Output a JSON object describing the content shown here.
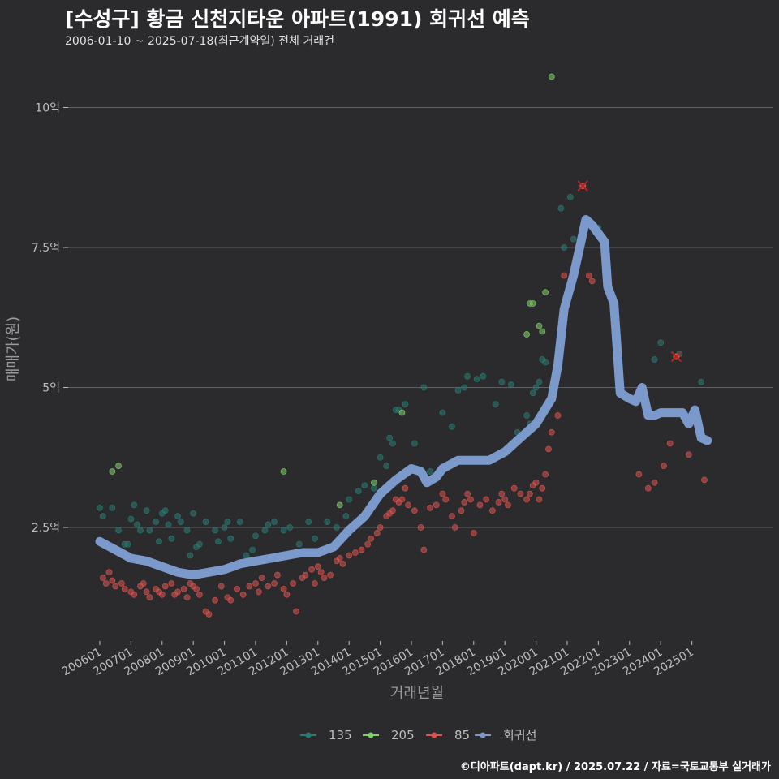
{
  "header": {
    "title": "[수성구] 황금 신천지타운 아파트(1991) 회귀선 예측",
    "subtitle": "2006-01-10 ~ 2025-07-18(최근계약일) 전체 거래건"
  },
  "footer": {
    "credit": "©디아파트(dapt.kr) / 2025.07.22 / 자료=국토교통부 실거래가"
  },
  "colors": {
    "135": "#2a7a72",
    "205": "#7fcf6a",
    "85": "#d9534f",
    "regression": "#7b9acb",
    "background": "#2b2b2d",
    "grid": "#606060"
  },
  "chart_data": {
    "type": "scatter",
    "title": "[수성구] 황금 신천지타운 아파트(1991) 회귀선 예측",
    "xlabel": "거래년월",
    "ylabel": "매매가(원)",
    "x_ticks": [
      "200601",
      "200701",
      "200801",
      "200901",
      "201001",
      "201101",
      "201201",
      "201301",
      "201401",
      "201501",
      "201601",
      "201701",
      "201801",
      "201901",
      "202001",
      "202101",
      "202201",
      "202301",
      "202401",
      "202501"
    ],
    "y_ticks": [
      {
        "value": 2.5,
        "label": "2.5억"
      },
      {
        "value": 5,
        "label": "5억"
      },
      {
        "value": 7.5,
        "label": "7.5억"
      },
      {
        "value": 10,
        "label": "10억"
      }
    ],
    "xlim": [
      2005.9,
      2025.7
    ],
    "ylim": [
      1.1,
      10.9
    ],
    "legend_position": "bottom",
    "legend": [
      "135",
      "205",
      "85",
      "회귀선"
    ],
    "series": [
      {
        "name": "135",
        "points": [
          [
            2006.0,
            2.85
          ],
          [
            2006.1,
            2.7
          ],
          [
            2006.4,
            2.85
          ],
          [
            2006.6,
            2.45
          ],
          [
            2006.8,
            2.2
          ],
          [
            2006.9,
            2.2
          ],
          [
            2007.0,
            2.65
          ],
          [
            2007.1,
            2.9
          ],
          [
            2007.2,
            2.55
          ],
          [
            2007.3,
            2.45
          ],
          [
            2007.5,
            2.8
          ],
          [
            2007.6,
            2.45
          ],
          [
            2007.8,
            2.6
          ],
          [
            2007.9,
            2.25
          ],
          [
            2008.0,
            2.75
          ],
          [
            2008.1,
            2.8
          ],
          [
            2008.2,
            2.55
          ],
          [
            2008.3,
            2.3
          ],
          [
            2008.5,
            2.7
          ],
          [
            2008.6,
            2.6
          ],
          [
            2008.8,
            2.45
          ],
          [
            2008.9,
            2.0
          ],
          [
            2009.0,
            2.75
          ],
          [
            2009.1,
            2.15
          ],
          [
            2009.2,
            2.2
          ],
          [
            2009.4,
            2.6
          ],
          [
            2009.7,
            2.45
          ],
          [
            2009.8,
            2.25
          ],
          [
            2010.0,
            2.5
          ],
          [
            2010.1,
            2.6
          ],
          [
            2010.2,
            2.3
          ],
          [
            2010.5,
            2.6
          ],
          [
            2010.7,
            2.0
          ],
          [
            2010.9,
            2.1
          ],
          [
            2011.0,
            2.35
          ],
          [
            2011.3,
            2.45
          ],
          [
            2011.4,
            2.55
          ],
          [
            2011.6,
            2.6
          ],
          [
            2011.9,
            2.45
          ],
          [
            2012.1,
            2.5
          ],
          [
            2012.4,
            2.2
          ],
          [
            2012.7,
            2.6
          ],
          [
            2012.9,
            2.3
          ],
          [
            2013.3,
            2.6
          ],
          [
            2013.6,
            2.5
          ],
          [
            2013.9,
            2.7
          ],
          [
            2014.0,
            3.0
          ],
          [
            2014.3,
            3.15
          ],
          [
            2014.5,
            3.25
          ],
          [
            2014.8,
            3.2
          ],
          [
            2015.0,
            3.75
          ],
          [
            2015.2,
            3.6
          ],
          [
            2015.3,
            4.1
          ],
          [
            2015.4,
            4.0
          ],
          [
            2015.5,
            4.6
          ],
          [
            2015.6,
            4.6
          ],
          [
            2015.8,
            4.7
          ],
          [
            2016.1,
            4.0
          ],
          [
            2016.4,
            5.0
          ],
          [
            2016.6,
            3.5
          ],
          [
            2017.0,
            4.55
          ],
          [
            2017.3,
            4.3
          ],
          [
            2017.5,
            4.95
          ],
          [
            2017.7,
            5.0
          ],
          [
            2017.8,
            5.2
          ],
          [
            2018.1,
            5.15
          ],
          [
            2018.3,
            5.2
          ],
          [
            2018.7,
            4.7
          ],
          [
            2018.9,
            5.1
          ],
          [
            2019.2,
            5.05
          ],
          [
            2019.4,
            4.2
          ],
          [
            2019.7,
            4.5
          ],
          [
            2019.8,
            4.35
          ],
          [
            2019.9,
            4.9
          ],
          [
            2020.0,
            5.0
          ],
          [
            2020.1,
            5.1
          ],
          [
            2020.2,
            5.5
          ],
          [
            2020.3,
            5.45
          ],
          [
            2020.6,
            4.95
          ],
          [
            2020.8,
            8.2
          ],
          [
            2020.9,
            7.5
          ],
          [
            2021.1,
            8.4
          ],
          [
            2021.2,
            7.65
          ],
          [
            2022.0,
            7.85
          ],
          [
            2023.8,
            5.5
          ],
          [
            2024.0,
            5.8
          ],
          [
            2024.6,
            5.6
          ],
          [
            2025.3,
            5.1
          ]
        ]
      },
      {
        "name": "205",
        "points": [
          [
            2006.4,
            3.5
          ],
          [
            2006.6,
            3.6
          ],
          [
            2011.9,
            3.5
          ],
          [
            2013.7,
            2.9
          ],
          [
            2014.8,
            3.3
          ],
          [
            2015.7,
            4.55
          ],
          [
            2019.7,
            5.95
          ],
          [
            2019.8,
            6.5
          ],
          [
            2019.9,
            6.5
          ],
          [
            2020.1,
            6.1
          ],
          [
            2020.2,
            6.0
          ],
          [
            2020.3,
            6.7
          ],
          [
            2020.5,
            10.55
          ]
        ]
      },
      {
        "name": "85",
        "points": [
          [
            2006.1,
            1.6
          ],
          [
            2006.2,
            1.5
          ],
          [
            2006.3,
            1.7
          ],
          [
            2006.4,
            1.55
          ],
          [
            2006.5,
            1.45
          ],
          [
            2006.7,
            1.5
          ],
          [
            2006.8,
            1.4
          ],
          [
            2007.0,
            1.35
          ],
          [
            2007.1,
            1.3
          ],
          [
            2007.3,
            1.45
          ],
          [
            2007.4,
            1.5
          ],
          [
            2007.5,
            1.35
          ],
          [
            2007.6,
            1.25
          ],
          [
            2007.8,
            1.4
          ],
          [
            2007.9,
            1.35
          ],
          [
            2008.0,
            1.3
          ],
          [
            2008.1,
            1.45
          ],
          [
            2008.3,
            1.5
          ],
          [
            2008.4,
            1.3
          ],
          [
            2008.5,
            1.35
          ],
          [
            2008.7,
            1.4
          ],
          [
            2008.8,
            1.25
          ],
          [
            2008.9,
            1.5
          ],
          [
            2009.0,
            1.45
          ],
          [
            2009.1,
            1.4
          ],
          [
            2009.2,
            1.3
          ],
          [
            2009.4,
            1.0
          ],
          [
            2009.5,
            0.95
          ],
          [
            2009.7,
            1.2
          ],
          [
            2009.9,
            1.45
          ],
          [
            2010.1,
            1.25
          ],
          [
            2010.2,
            1.2
          ],
          [
            2010.4,
            1.4
          ],
          [
            2010.6,
            1.3
          ],
          [
            2010.8,
            1.45
          ],
          [
            2011.0,
            1.5
          ],
          [
            2011.1,
            1.35
          ],
          [
            2011.2,
            1.6
          ],
          [
            2011.4,
            1.45
          ],
          [
            2011.6,
            1.5
          ],
          [
            2011.7,
            1.65
          ],
          [
            2011.9,
            1.4
          ],
          [
            2012.0,
            1.3
          ],
          [
            2012.2,
            1.5
          ],
          [
            2012.3,
            1.0
          ],
          [
            2012.5,
            1.6
          ],
          [
            2012.6,
            1.65
          ],
          [
            2012.8,
            1.75
          ],
          [
            2012.9,
            1.5
          ],
          [
            2013.0,
            1.8
          ],
          [
            2013.1,
            1.7
          ],
          [
            2013.2,
            1.6
          ],
          [
            2013.4,
            1.65
          ],
          [
            2013.6,
            1.9
          ],
          [
            2013.7,
            1.95
          ],
          [
            2013.8,
            1.85
          ],
          [
            2014.0,
            2.0
          ],
          [
            2014.2,
            2.05
          ],
          [
            2014.4,
            2.1
          ],
          [
            2014.6,
            2.2
          ],
          [
            2014.7,
            2.3
          ],
          [
            2014.9,
            2.4
          ],
          [
            2015.0,
            2.5
          ],
          [
            2015.2,
            2.7
          ],
          [
            2015.3,
            2.75
          ],
          [
            2015.4,
            2.8
          ],
          [
            2015.5,
            3.0
          ],
          [
            2015.6,
            2.95
          ],
          [
            2015.7,
            3.0
          ],
          [
            2015.8,
            3.2
          ],
          [
            2015.9,
            2.9
          ],
          [
            2016.1,
            2.8
          ],
          [
            2016.3,
            2.5
          ],
          [
            2016.4,
            2.1
          ],
          [
            2016.6,
            2.85
          ],
          [
            2016.8,
            2.9
          ],
          [
            2017.0,
            3.1
          ],
          [
            2017.1,
            3.0
          ],
          [
            2017.3,
            2.7
          ],
          [
            2017.4,
            2.5
          ],
          [
            2017.6,
            2.8
          ],
          [
            2017.7,
            2.95
          ],
          [
            2017.8,
            3.1
          ],
          [
            2017.9,
            3.0
          ],
          [
            2018.0,
            2.4
          ],
          [
            2018.2,
            2.9
          ],
          [
            2018.4,
            3.0
          ],
          [
            2018.6,
            2.8
          ],
          [
            2018.8,
            2.95
          ],
          [
            2018.9,
            3.1
          ],
          [
            2019.0,
            3.0
          ],
          [
            2019.1,
            2.9
          ],
          [
            2019.3,
            3.2
          ],
          [
            2019.5,
            3.1
          ],
          [
            2019.7,
            3.0
          ],
          [
            2019.8,
            3.1
          ],
          [
            2019.9,
            3.25
          ],
          [
            2020.0,
            3.3
          ],
          [
            2020.1,
            3.0
          ],
          [
            2020.2,
            3.2
          ],
          [
            2020.3,
            3.45
          ],
          [
            2020.4,
            3.9
          ],
          [
            2020.5,
            4.2
          ],
          [
            2020.7,
            4.5
          ],
          [
            2020.9,
            7.0
          ],
          [
            2021.5,
            8.6
          ],
          [
            2021.7,
            7.0
          ],
          [
            2021.8,
            6.9
          ],
          [
            2023.3,
            3.45
          ],
          [
            2023.6,
            3.2
          ],
          [
            2023.8,
            3.3
          ],
          [
            2024.1,
            3.6
          ],
          [
            2024.3,
            4.0
          ],
          [
            2024.5,
            5.55
          ],
          [
            2024.9,
            3.8
          ],
          [
            2025.4,
            3.35
          ]
        ]
      }
    ],
    "highlighted": [
      {
        "series": "85",
        "x": 2021.5,
        "y": 8.6
      },
      {
        "series": "85",
        "x": 2024.5,
        "y": 5.55
      }
    ],
    "regression": [
      [
        2006.0,
        2.25
      ],
      [
        2006.5,
        2.1
      ],
      [
        2007.0,
        1.95
      ],
      [
        2007.5,
        1.9
      ],
      [
        2008.0,
        1.8
      ],
      [
        2008.5,
        1.7
      ],
      [
        2009.0,
        1.65
      ],
      [
        2009.5,
        1.7
      ],
      [
        2010.0,
        1.75
      ],
      [
        2010.5,
        1.85
      ],
      [
        2011.0,
        1.9
      ],
      [
        2011.5,
        1.95
      ],
      [
        2012.0,
        2.0
      ],
      [
        2012.5,
        2.05
      ],
      [
        2013.0,
        2.05
      ],
      [
        2013.5,
        2.15
      ],
      [
        2014.0,
        2.45
      ],
      [
        2014.5,
        2.7
      ],
      [
        2015.0,
        3.1
      ],
      [
        2015.5,
        3.35
      ],
      [
        2016.0,
        3.55
      ],
      [
        2016.3,
        3.5
      ],
      [
        2016.5,
        3.3
      ],
      [
        2016.8,
        3.4
      ],
      [
        2017.0,
        3.55
      ],
      [
        2017.5,
        3.7
      ],
      [
        2018.0,
        3.7
      ],
      [
        2018.5,
        3.7
      ],
      [
        2019.0,
        3.85
      ],
      [
        2019.5,
        4.1
      ],
      [
        2020.0,
        4.35
      ],
      [
        2020.5,
        4.8
      ],
      [
        2020.7,
        5.4
      ],
      [
        2020.9,
        6.4
      ],
      [
        2021.0,
        6.6
      ],
      [
        2021.2,
        7.0
      ],
      [
        2021.4,
        7.5
      ],
      [
        2021.6,
        8.0
      ],
      [
        2021.8,
        7.9
      ],
      [
        2022.0,
        7.75
      ],
      [
        2022.2,
        7.6
      ],
      [
        2022.3,
        6.8
      ],
      [
        2022.5,
        6.5
      ],
      [
        2022.7,
        4.9
      ],
      [
        2023.0,
        4.8
      ],
      [
        2023.2,
        4.75
      ],
      [
        2023.4,
        5.0
      ],
      [
        2023.6,
        4.5
      ],
      [
        2023.8,
        4.5
      ],
      [
        2024.0,
        4.55
      ],
      [
        2024.4,
        4.55
      ],
      [
        2024.7,
        4.55
      ],
      [
        2024.9,
        4.35
      ],
      [
        2025.1,
        4.6
      ],
      [
        2025.3,
        4.1
      ],
      [
        2025.5,
        4.05
      ]
    ]
  }
}
